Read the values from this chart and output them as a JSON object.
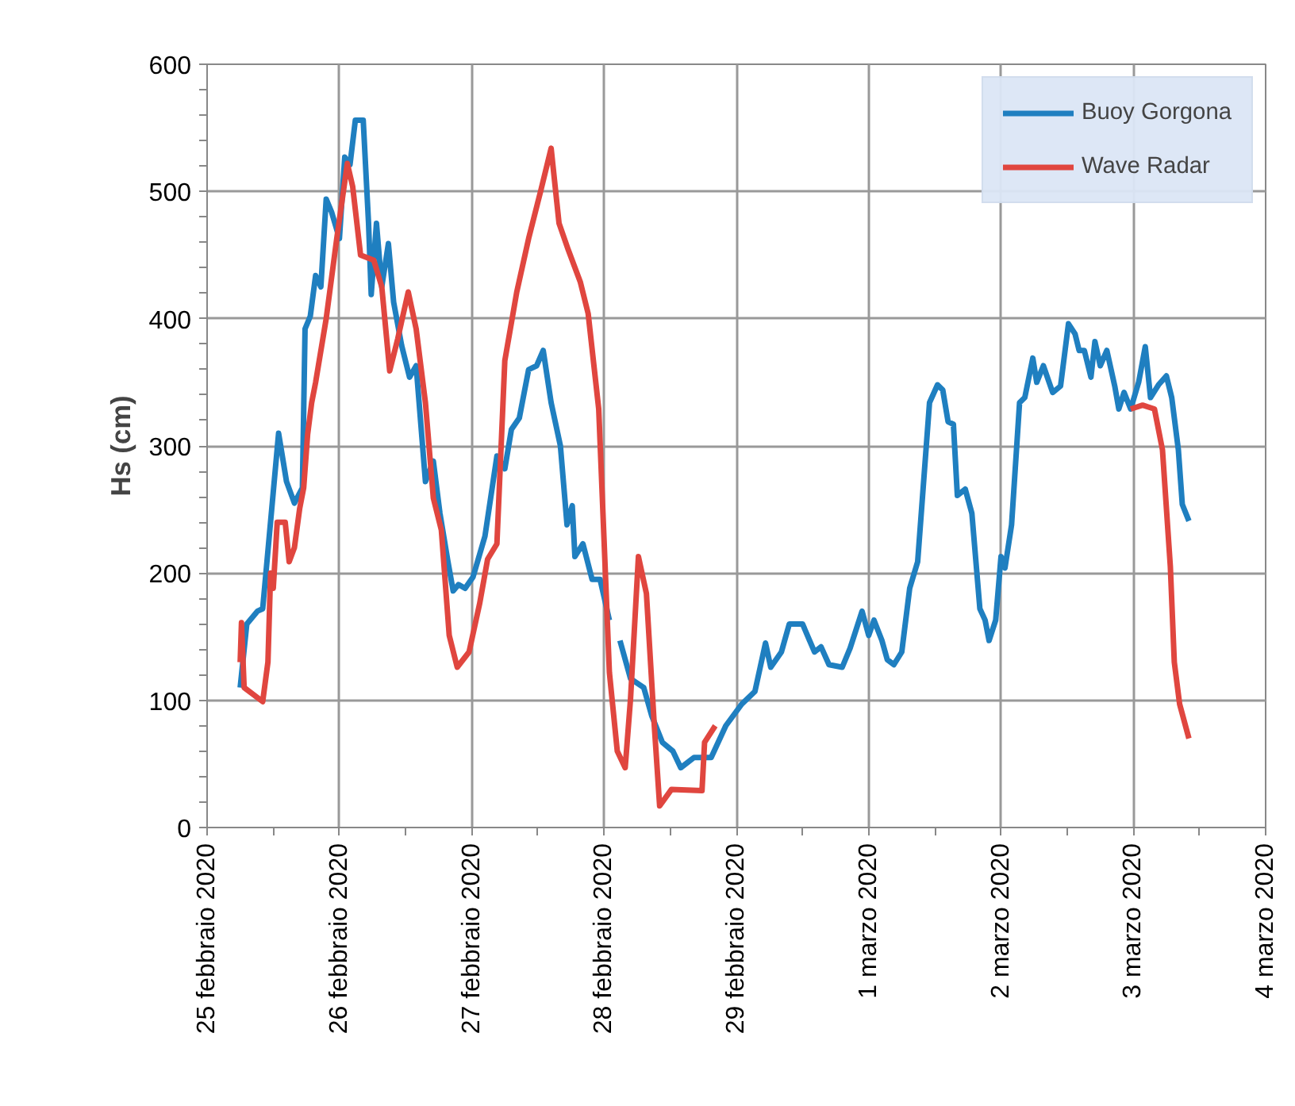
{
  "chart_data": {
    "type": "line",
    "ylabel": "Hs (cm)",
    "xlim": [
      "2020-02-25",
      "2020-03-04"
    ],
    "ylim": [
      0,
      600
    ],
    "xticks": [
      {
        "value": "2020-02-25",
        "label": "25 febbraio 2020"
      },
      {
        "value": "2020-02-25T12:00",
        "label": null
      },
      {
        "value": "2020-02-26",
        "label": "26 febbraio 2020"
      },
      {
        "value": "2020-02-26T12:00",
        "label": null
      },
      {
        "value": "2020-02-27",
        "label": "27 febbraio 2020"
      },
      {
        "value": "2020-02-27T12:00",
        "label": null
      },
      {
        "value": "2020-02-28",
        "label": "28 febbraio 2020"
      },
      {
        "value": "2020-02-28T12:00",
        "label": null
      },
      {
        "value": "2020-02-29",
        "label": "29 febbraio 2020"
      },
      {
        "value": "2020-02-29T12:00",
        "label": null
      },
      {
        "value": "2020-03-01",
        "label": "1 marzo 2020"
      },
      {
        "value": "2020-03-01T12:00",
        "label": null
      },
      {
        "value": "2020-03-02",
        "label": "2 marzo 2020"
      },
      {
        "value": "2020-03-02T12:00",
        "label": null
      },
      {
        "value": "2020-03-03",
        "label": "3 marzo 2020"
      },
      {
        "value": "2020-03-03T12:00",
        "label": null
      },
      {
        "value": "2020-03-04",
        "label": "4 marzo 2020"
      }
    ],
    "yticks": [
      0,
      {
        "value": 20,
        "label": null
      },
      {
        "value": 40,
        "label": null
      },
      {
        "value": 60,
        "label": null
      },
      {
        "value": 80,
        "label": null
      },
      100,
      {
        "value": 120,
        "label": null
      },
      {
        "value": 140,
        "label": null
      },
      {
        "value": 160,
        "label": null
      },
      {
        "value": 180,
        "label": null
      },
      200,
      {
        "value": 220,
        "label": null
      },
      {
        "value": 240,
        "label": null
      },
      {
        "value": 260,
        "label": null
      },
      {
        "value": 280,
        "label": null
      },
      300,
      {
        "value": 320,
        "label": null
      },
      {
        "value": 340,
        "label": null
      },
      {
        "value": 360,
        "label": null
      },
      {
        "value": 380,
        "label": null
      },
      400,
      {
        "value": 420,
        "label": null
      },
      {
        "value": 440,
        "label": null
      },
      {
        "value": 460,
        "label": null
      },
      {
        "value": 480,
        "label": null
      },
      500,
      {
        "value": 520,
        "label": null
      },
      {
        "value": 540,
        "label": null
      },
      {
        "value": 560,
        "label": null
      },
      {
        "value": 580,
        "label": null
      },
      600
    ],
    "grid": true,
    "legend": "top right",
    "line_style": "solid",
    "marker": "none",
    "series": [
      {
        "name": "Buoy Gorgona",
        "color": "#1f7fc0",
        "x": [
          "2020-02-25T06:00",
          "2020-02-25T07:12",
          "2020-02-25T09:07",
          "2020-02-25T10:05",
          "2020-02-25T12:58",
          "2020-02-25T14:24",
          "2020-02-25T15:50",
          "2020-02-25T17:17",
          "2020-02-25T17:46",
          "2020-02-25T18:43",
          "2020-02-25T19:41",
          "2020-02-25T20:38",
          "2020-02-25T21:36",
          "2020-02-25T22:34",
          "2020-02-26T00:00",
          "2020-02-26T00:58",
          "2020-02-26T01:55",
          "2020-02-26T02:53",
          "2020-02-26T04:19",
          "2020-02-26T05:17",
          "2020-02-26T05:46",
          "2020-02-26T06:43",
          "2020-02-26T07:41",
          "2020-02-26T08:53",
          "2020-02-26T09:50",
          "2020-02-26T11:17",
          "2020-02-26T12:43",
          "2020-02-26T13:55",
          "2020-02-26T15:36",
          "2020-02-26T17:02",
          "2020-02-26T18:14",
          "2020-02-26T19:41",
          "2020-02-26T20:38",
          "2020-02-26T21:36",
          "2020-02-26T22:48",
          "2020-02-27T00:14",
          "2020-02-27T02:24",
          "2020-02-27T04:34",
          "2020-02-27T06:00",
          "2020-02-27T07:12",
          "2020-02-27T08:38",
          "2020-02-27T10:19",
          "2020-02-27T11:46",
          "2020-02-27T12:58",
          "2020-02-27T14:24",
          "2020-02-27T16:05",
          "2020-02-27T17:17",
          "2020-02-27T18:14",
          "2020-02-27T18:43",
          "2020-02-27T20:10",
          "2020-02-27T21:50",
          "2020-02-27T23:17",
          "2020-02-28T00:58",
          "2020-02-28T01:55",
          "2020-02-28T02:53",
          "2020-02-28T04:48",
          "2020-02-28T07:12",
          "2020-02-28T08:38",
          "2020-02-28T10:34",
          "2020-02-28T12:29",
          "2020-02-28T13:55",
          "2020-02-28T16:19",
          "2020-02-28T19:26",
          "2020-02-28T22:05",
          "2020-02-29T00:58",
          "2020-02-29T03:22",
          "2020-02-29T05:17",
          "2020-02-29T06:14",
          "2020-02-29T08:10",
          "2020-02-29T09:36",
          "2020-02-29T12:00",
          "2020-02-29T14:10",
          "2020-02-29T15:22",
          "2020-02-29T16:48",
          "2020-02-29T19:12",
          "2020-02-29T20:38",
          "2020-02-29T22:48",
          "2020-03-01T00:00",
          "2020-03-01T00:58",
          "2020-03-01T02:24",
          "2020-03-01T03:22",
          "2020-03-01T04:34",
          "2020-03-01T06:00",
          "2020-03-01T07:26",
          "2020-03-01T08:53",
          "2020-03-01T11:02",
          "2020-03-01T12:29",
          "2020-03-01T13:26",
          "2020-03-01T14:24",
          "2020-03-01T15:22",
          "2020-03-01T16:05",
          "2020-03-01T17:31",
          "2020-03-01T18:43",
          "2020-03-01T20:10",
          "2020-03-01T21:07",
          "2020-03-01T21:50",
          "2020-03-01T23:02",
          "2020-03-02T00:00",
          "2020-03-02T00:43",
          "2020-03-02T01:55",
          "2020-03-02T03:22",
          "2020-03-02T04:19",
          "2020-03-02T05:46",
          "2020-03-02T06:29",
          "2020-03-02T07:41",
          "2020-03-02T09:22",
          "2020-03-02T10:48",
          "2020-03-02T12:14",
          "2020-03-02T13:26",
          "2020-03-02T14:10",
          "2020-03-02T15:07",
          "2020-03-02T16:19",
          "2020-03-02T17:02",
          "2020-03-02T18:00",
          "2020-03-02T19:12",
          "2020-03-02T20:38",
          "2020-03-02T21:22",
          "2020-03-02T22:19",
          "2020-03-02T23:31",
          "2020-03-03T00:58",
          "2020-03-03T02:10",
          "2020-03-03T03:07",
          "2020-03-03T04:34",
          "2020-03-03T06:00",
          "2020-03-03T06:58",
          "2020-03-03T08:10",
          "2020-03-03T08:53",
          "2020-03-03T10:05"
        ],
        "values": [
          110,
          160,
          170,
          172,
          310,
          272,
          255,
          267,
          392,
          402,
          434,
          425,
          494,
          484,
          463,
          527,
          521,
          556,
          556,
          475,
          419,
          475,
          425,
          459,
          413,
          379,
          354,
          363,
          272,
          288,
          247,
          209,
          186,
          191,
          188,
          197,
          229,
          292,
          282,
          313,
          322,
          360,
          363,
          375,
          334,
          300,
          238,
          253,
          213,
          223,
          195,
          195,
          163,
          null,
          147,
          117,
          110,
          88,
          67,
          60,
          47,
          55,
          55,
          80,
          97,
          107,
          145,
          126,
          138,
          160,
          160,
          138,
          142,
          128,
          126,
          141,
          170,
          151,
          163,
          147,
          132,
          128,
          138,
          188,
          209,
          334,
          348,
          344,
          319,
          317,
          261,
          266,
          247,
          172,
          163,
          147,
          163,
          213,
          204,
          238,
          334,
          338,
          369,
          350,
          363,
          342,
          347,
          396,
          388,
          375,
          375,
          354,
          382,
          363,
          375,
          347,
          329,
          342,
          329,
          350,
          378,
          338,
          348,
          355,
          338,
          297,
          254,
          241
        ]
      },
      {
        "name": "Wave Radar",
        "color": "#e0463f",
        "x": [
          "2020-02-25T06:00",
          "2020-02-25T06:14",
          "2020-02-25T06:43",
          "2020-02-25T10:05",
          "2020-02-25T11:02",
          "2020-02-25T11:31",
          "2020-02-25T12:00",
          "2020-02-25T12:43",
          "2020-02-25T14:10",
          "2020-02-25T14:53",
          "2020-02-25T15:50",
          "2020-02-25T16:48",
          "2020-02-25T17:31",
          "2020-02-25T18:14",
          "2020-02-25T18:58",
          "2020-02-25T19:41",
          "2020-02-25T21:36",
          "2020-02-25T23:31",
          "2020-02-26T01:26",
          "2020-02-26T02:24",
          "2020-02-26T03:50",
          "2020-02-26T06:14",
          "2020-02-26T07:41",
          "2020-02-26T09:07",
          "2020-02-26T10:34",
          "2020-02-26T12:29",
          "2020-02-26T13:55",
          "2020-02-26T15:36",
          "2020-02-26T17:02",
          "2020-02-26T18:29",
          "2020-02-26T19:55",
          "2020-02-26T21:22",
          "2020-02-26T23:31",
          "2020-02-27T01:26",
          "2020-02-27T02:53",
          "2020-02-27T04:34",
          "2020-02-27T06:00",
          "2020-02-27T08:10",
          "2020-02-27T10:19",
          "2020-02-27T12:29",
          "2020-02-27T14:24",
          "2020-02-27T15:50",
          "2020-02-27T17:31",
          "2020-02-27T19:41",
          "2020-02-27T21:07",
          "2020-02-27T23:02",
          "2020-02-28T00:00",
          "2020-02-28T00:58",
          "2020-02-28T02:24",
          "2020-02-28T03:50",
          "2020-02-28T04:48",
          "2020-02-28T06:14",
          "2020-02-28T07:41",
          "2020-02-28T09:07",
          "2020-02-28T10:05",
          "2020-02-28T12:14",
          "2020-02-28T17:46",
          "2020-02-28T18:14",
          "2020-02-28T20:10",
          "2020-03-01T00:00",
          "2020-03-02T23:31",
          "2020-03-03T01:41",
          "2020-03-03T03:50",
          "2020-03-03T05:17",
          "2020-03-03T06:43",
          "2020-03-03T07:26",
          "2020-03-03T08:24",
          "2020-03-03T10:05"
        ],
        "values": [
          130,
          161,
          110,
          99,
          130,
          200,
          188,
          240,
          240,
          209,
          220,
          251,
          267,
          309,
          334,
          350,
          400,
          463,
          522,
          504,
          450,
          446,
          425,
          359,
          384,
          421,
          392,
          334,
          259,
          234,
          151,
          126,
          138,
          176,
          211,
          223,
          367,
          421,
          463,
          500,
          534,
          475,
          454,
          429,
          404,
          329,
          226,
          122,
          60,
          47,
          101,
          213,
          184,
          80,
          17,
          30,
          29,
          67,
          80,
          null,
          329,
          332,
          329,
          297,
          205,
          130,
          97,
          70
        ]
      }
    ]
  }
}
